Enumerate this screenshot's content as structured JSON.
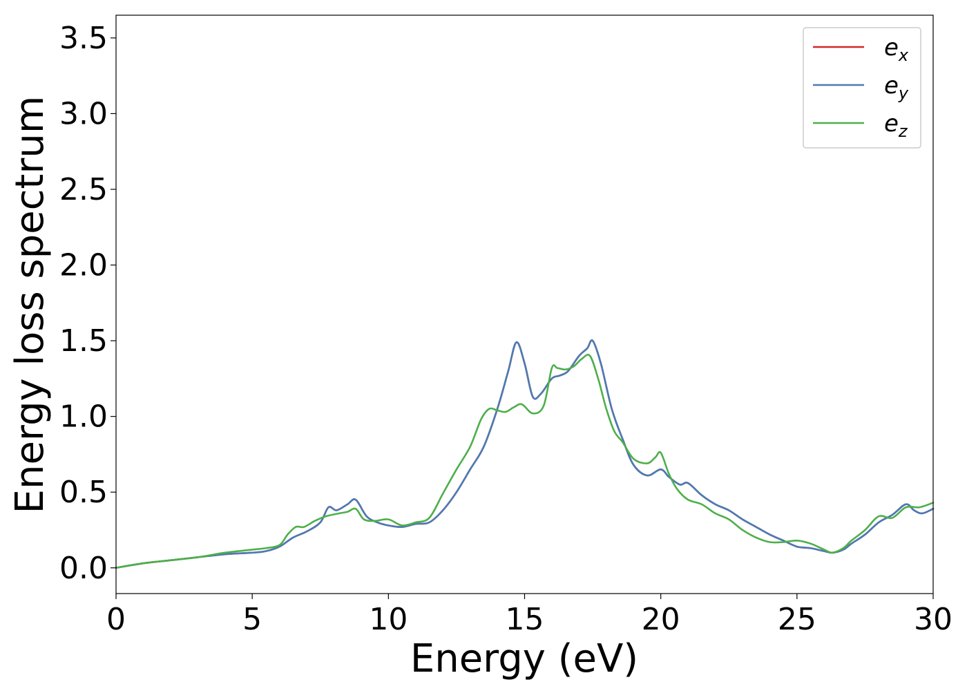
{
  "chart_data": {
    "type": "line",
    "title": "",
    "xlabel": "Energy (eV)",
    "ylabel": "Energy loss spectrum",
    "xlim": [
      0,
      30
    ],
    "ylim": [
      -0.17,
      3.65
    ],
    "xticks": [
      0,
      5,
      10,
      15,
      20,
      25,
      30
    ],
    "xtick_labels": [
      "0",
      "5",
      "10",
      "15",
      "20",
      "25",
      "30"
    ],
    "yticks": [
      0.0,
      0.5,
      1.0,
      1.5,
      2.0,
      2.5,
      3.0,
      3.5
    ],
    "ytick_labels": [
      "0.0",
      "0.5",
      "1.0",
      "1.5",
      "2.0",
      "2.5",
      "3.0",
      "3.5"
    ],
    "grid": false,
    "legend_position": "top-right",
    "series": [
      {
        "name": "e_x",
        "legend_base": "e",
        "legend_sub": "x",
        "color": "#d62728",
        "x": [
          0,
          1,
          2,
          3,
          4,
          5,
          5.5,
          6,
          6.5,
          7,
          7.5,
          7.8,
          8.1,
          8.5,
          8.8,
          9.2,
          9.6,
          10,
          10.5,
          11,
          11.5,
          12,
          12.5,
          13,
          13.5,
          14,
          14.4,
          14.7,
          15,
          15.3,
          15.6,
          16,
          16.3,
          16.6,
          17,
          17.3,
          17.5,
          17.8,
          18.2,
          18.6,
          19,
          19.5,
          20,
          20.3,
          20.7,
          21,
          21.5,
          22,
          22.5,
          23,
          23.5,
          24,
          24.5,
          25,
          25.5,
          26,
          26.3,
          26.7,
          27,
          27.5,
          28,
          28.5,
          29,
          29.3,
          29.6,
          30
        ],
        "y": [
          0.0,
          0.03,
          0.05,
          0.07,
          0.09,
          0.1,
          0.11,
          0.14,
          0.2,
          0.24,
          0.3,
          0.4,
          0.38,
          0.42,
          0.45,
          0.34,
          0.3,
          0.28,
          0.27,
          0.29,
          0.3,
          0.38,
          0.5,
          0.65,
          0.8,
          1.05,
          1.3,
          1.49,
          1.35,
          1.13,
          1.15,
          1.25,
          1.27,
          1.3,
          1.4,
          1.45,
          1.5,
          1.35,
          1.05,
          0.85,
          0.68,
          0.61,
          0.65,
          0.6,
          0.55,
          0.56,
          0.48,
          0.42,
          0.38,
          0.32,
          0.27,
          0.22,
          0.18,
          0.14,
          0.13,
          0.11,
          0.1,
          0.12,
          0.16,
          0.22,
          0.3,
          0.35,
          0.42,
          0.38,
          0.36,
          0.39
        ]
      },
      {
        "name": "e_y",
        "legend_base": "e",
        "legend_sub": "y",
        "color": "#4a7bb5",
        "x": [
          0,
          1,
          2,
          3,
          4,
          5,
          5.5,
          6,
          6.5,
          7,
          7.5,
          7.8,
          8.1,
          8.5,
          8.8,
          9.2,
          9.6,
          10,
          10.5,
          11,
          11.5,
          12,
          12.5,
          13,
          13.5,
          14,
          14.4,
          14.7,
          15,
          15.3,
          15.6,
          16,
          16.3,
          16.6,
          17,
          17.3,
          17.5,
          17.8,
          18.2,
          18.6,
          19,
          19.5,
          20,
          20.3,
          20.7,
          21,
          21.5,
          22,
          22.5,
          23,
          23.5,
          24,
          24.5,
          25,
          25.5,
          26,
          26.3,
          26.7,
          27,
          27.5,
          28,
          28.5,
          29,
          29.3,
          29.6,
          30
        ],
        "y": [
          0.0,
          0.03,
          0.05,
          0.07,
          0.09,
          0.1,
          0.11,
          0.14,
          0.2,
          0.24,
          0.3,
          0.4,
          0.38,
          0.42,
          0.45,
          0.34,
          0.3,
          0.28,
          0.27,
          0.29,
          0.3,
          0.38,
          0.5,
          0.65,
          0.8,
          1.05,
          1.3,
          1.49,
          1.35,
          1.13,
          1.15,
          1.25,
          1.27,
          1.3,
          1.4,
          1.45,
          1.5,
          1.35,
          1.05,
          0.85,
          0.68,
          0.61,
          0.65,
          0.6,
          0.55,
          0.56,
          0.48,
          0.42,
          0.38,
          0.32,
          0.27,
          0.22,
          0.18,
          0.14,
          0.13,
          0.11,
          0.1,
          0.12,
          0.16,
          0.22,
          0.3,
          0.35,
          0.42,
          0.38,
          0.36,
          0.39
        ]
      },
      {
        "name": "e_z",
        "legend_base": "e",
        "legend_sub": "z",
        "color": "#4daf4a",
        "x": [
          0,
          1,
          2,
          3,
          4,
          5,
          5.5,
          6,
          6.3,
          6.6,
          6.9,
          7.3,
          7.7,
          8.2,
          8.5,
          8.8,
          9.1,
          9.5,
          10,
          10.5,
          11,
          11.5,
          12,
          12.5,
          13,
          13.4,
          13.7,
          14,
          14.3,
          14.6,
          14.9,
          15.3,
          15.7,
          16,
          16.2,
          16.5,
          16.8,
          17.1,
          17.4,
          17.7,
          18,
          18.3,
          18.6,
          19,
          19.5,
          19.8,
          20,
          20.3,
          20.6,
          21,
          21.5,
          22,
          22.5,
          23,
          23.5,
          24,
          24.5,
          25,
          25.5,
          26,
          26.3,
          26.7,
          27,
          27.5,
          28,
          28.5,
          29,
          29.5,
          30
        ],
        "y": [
          0.0,
          0.03,
          0.05,
          0.07,
          0.1,
          0.12,
          0.13,
          0.15,
          0.22,
          0.27,
          0.27,
          0.31,
          0.34,
          0.36,
          0.37,
          0.39,
          0.32,
          0.31,
          0.32,
          0.28,
          0.3,
          0.33,
          0.49,
          0.65,
          0.8,
          0.98,
          1.05,
          1.04,
          1.03,
          1.06,
          1.08,
          1.02,
          1.07,
          1.32,
          1.32,
          1.31,
          1.33,
          1.38,
          1.4,
          1.25,
          1.05,
          0.9,
          0.83,
          0.72,
          0.69,
          0.73,
          0.76,
          0.62,
          0.52,
          0.45,
          0.42,
          0.36,
          0.32,
          0.25,
          0.2,
          0.17,
          0.17,
          0.18,
          0.16,
          0.12,
          0.1,
          0.13,
          0.18,
          0.25,
          0.34,
          0.33,
          0.4,
          0.4,
          0.43
        ]
      }
    ]
  }
}
